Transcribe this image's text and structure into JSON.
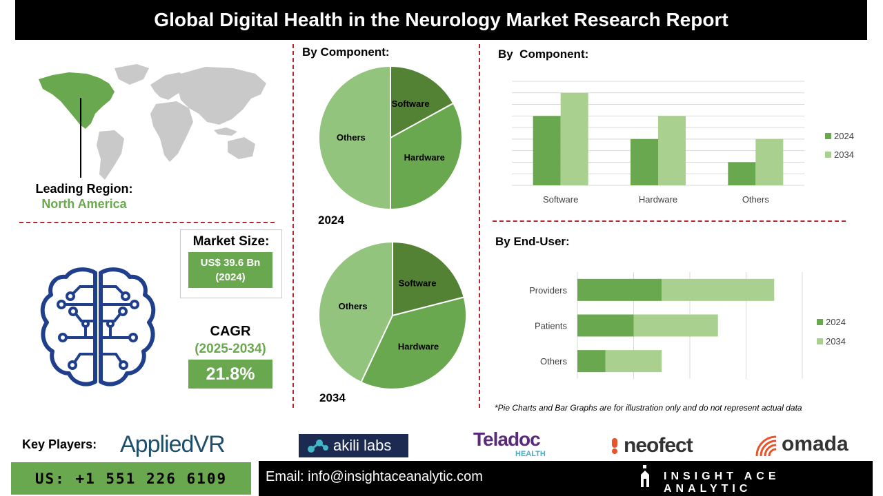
{
  "title": "Global Digital Health in the Neurology Market Research Report",
  "region": {
    "label": "Leading Region:",
    "value": "North America"
  },
  "market_size": {
    "label": "Market Size:",
    "value": "US$ 39.6 Bn\n(2024)"
  },
  "cagr": {
    "label": "CAGR",
    "period": "(2025-2034)",
    "value": "21.8%"
  },
  "sections": {
    "pie_title": "By Component:",
    "bar_component_title": "By  Component:",
    "bar_enduser_title": "By End-User:"
  },
  "pie_years": {
    "y2024": "2024",
    "y2034": "2034"
  },
  "note": "*Pie Charts and Bar Graphs are for illustration only and do not represent actual data",
  "key_players": {
    "label": "Key Players:",
    "names": [
      "AppliedVR",
      "akili labs",
      "Teladoc",
      "HEALTH",
      "neofect",
      "omada"
    ]
  },
  "footer": {
    "phone": "US: +1 551 226 6109",
    "email": "Email: info@insightaceanalytic.com",
    "brand": "INSIGHT ACE ANALYTIC"
  },
  "colors": {
    "dark_green": "#548235",
    "mid_green": "#6aa84f",
    "light_green": "#93c47d",
    "pale_green": "#a9d08e",
    "divider_red": "#b7262f",
    "map_gray": "#c9c9c9"
  },
  "chart_data": [
    {
      "type": "pie",
      "title": "2024",
      "categories": [
        "Software",
        "Hardware",
        "Others"
      ],
      "values": [
        17,
        33,
        50
      ]
    },
    {
      "type": "pie",
      "title": "2034",
      "categories": [
        "Software",
        "Hardware",
        "Others"
      ],
      "values": [
        21,
        36,
        43
      ]
    },
    {
      "type": "bar",
      "categories": [
        "Software",
        "Hardware",
        "Others"
      ],
      "series": [
        {
          "name": "2024",
          "values": [
            6,
            4,
            2
          ]
        },
        {
          "name": "2034",
          "values": [
            8,
            6,
            4
          ]
        }
      ],
      "ylim": [
        0,
        9
      ],
      "grid": true,
      "legend": "right"
    },
    {
      "type": "bar",
      "orientation": "horizontal",
      "stacked": true,
      "categories": [
        "Providers",
        "Patients",
        "Others"
      ],
      "series": [
        {
          "name": "2024",
          "values": [
            3,
            2,
            1
          ]
        },
        {
          "name": "2034",
          "values": [
            4,
            3,
            2
          ]
        }
      ],
      "xlim": [
        0,
        8
      ],
      "grid": true,
      "legend": "right"
    }
  ]
}
